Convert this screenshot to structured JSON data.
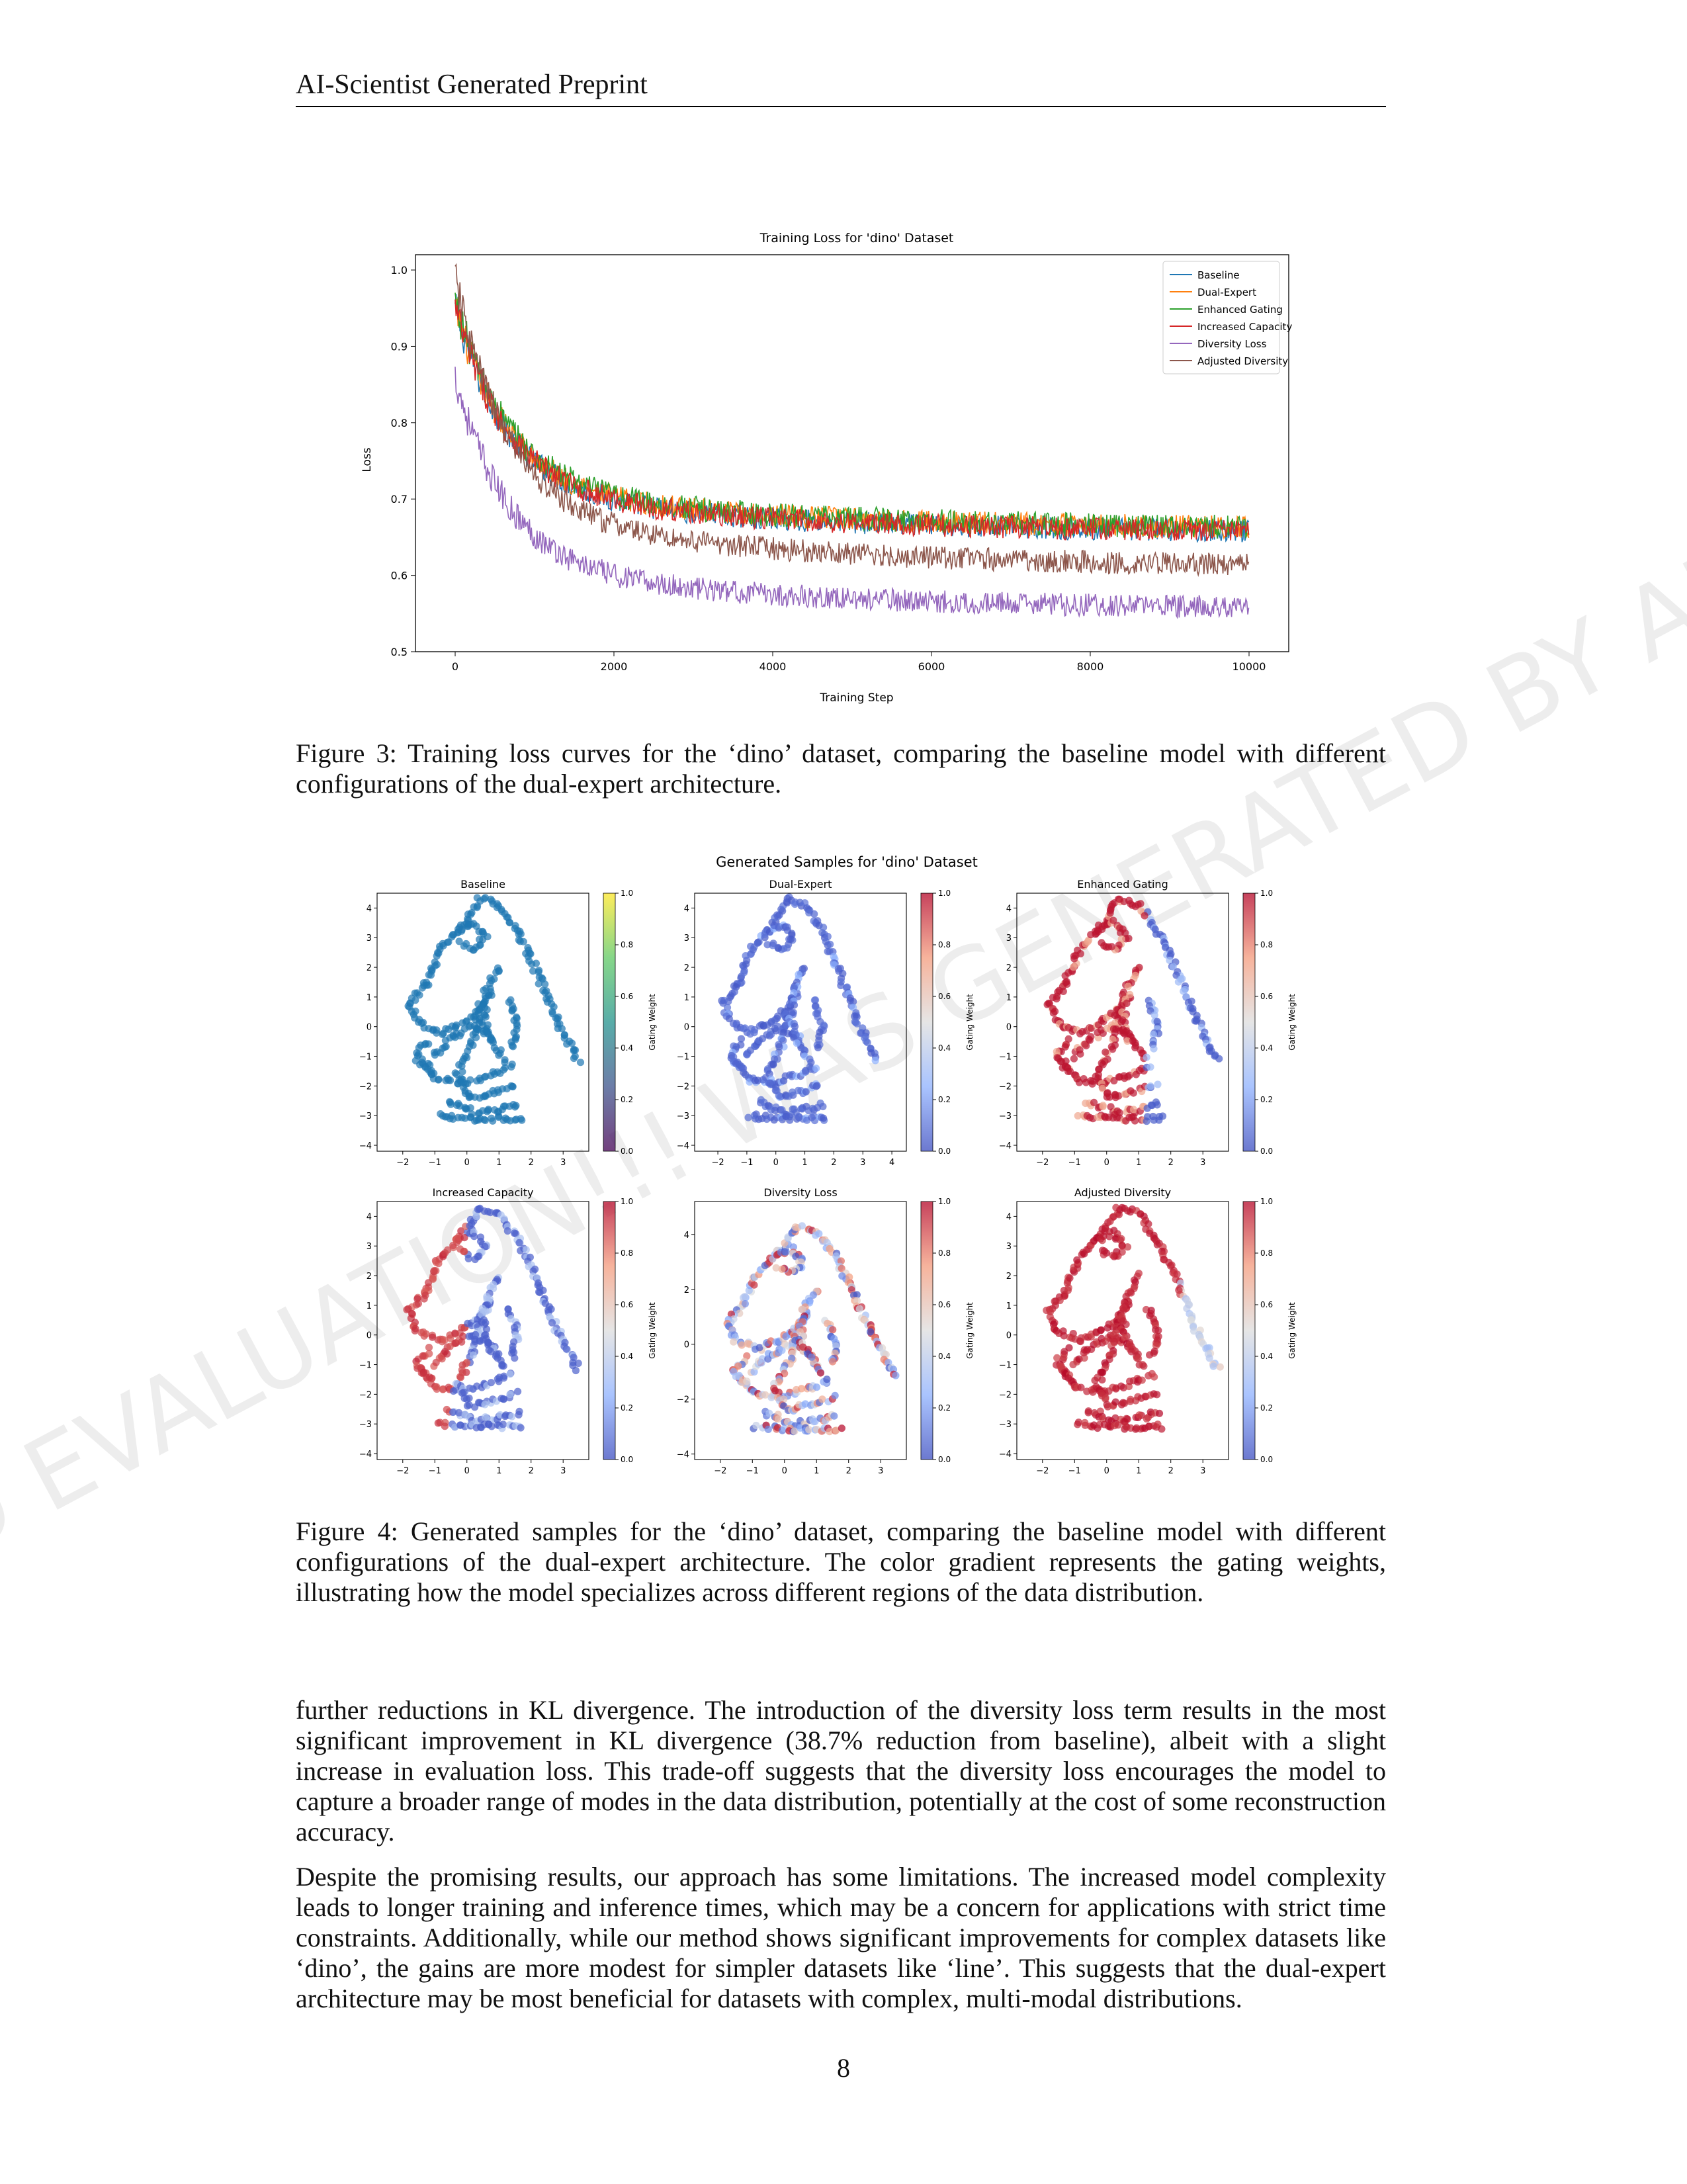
{
  "header": {
    "title": "AI-Scientist Generated Preprint"
  },
  "watermark": {
    "text": "AUTOMATED EVALUATION!!! WAS GENERATED BY AI-SCIENTIST"
  },
  "figure3": {
    "caption": "Figure 3: Training loss curves for the ‘dino’ dataset, comparing the baseline model with different configurations of the dual-expert architecture.",
    "chart_data": {
      "type": "line",
      "title": "Training Loss for 'dino' Dataset",
      "xlabel": "Training Step",
      "ylabel": "Loss",
      "xlim": [
        -500,
        10500
      ],
      "ylim": [
        0.5,
        1.02
      ],
      "xticks": [
        0,
        2000,
        4000,
        6000,
        8000,
        10000
      ],
      "yticks": [
        0.5,
        0.6,
        0.7,
        0.8,
        0.9,
        1.0
      ],
      "legend_position": "top-right",
      "grid": false,
      "series": [
        {
          "name": "Baseline",
          "color": "#1f77b4",
          "start": 0.95,
          "end": 0.655,
          "noise": 0.015
        },
        {
          "name": "Dual-Expert",
          "color": "#ff7f0e",
          "start": 0.95,
          "end": 0.66,
          "noise": 0.015
        },
        {
          "name": "Enhanced Gating",
          "color": "#2ca02c",
          "start": 0.96,
          "end": 0.66,
          "noise": 0.016
        },
        {
          "name": "Increased Capacity",
          "color": "#d62728",
          "start": 0.95,
          "end": 0.655,
          "noise": 0.015
        },
        {
          "name": "Diversity Loss",
          "color": "#9467bd",
          "start": 0.86,
          "end": 0.555,
          "noise": 0.015
        },
        {
          "name": "Adjusted Diversity",
          "color": "#8c564b",
          "start": 0.99,
          "end": 0.61,
          "noise": 0.015
        }
      ]
    }
  },
  "figure4": {
    "caption": "Figure 4: Generated samples for the ‘dino’ dataset, comparing the baseline model with different configurations of the dual-expert architecture. The color gradient represents the gating weights, illustrating how the model specializes across different regions of the data distribution.",
    "chart_data": {
      "type": "scatter",
      "title": "Generated Samples for 'dino' Dataset",
      "colorbar_label": "Gating Weight",
      "colorbar_ticks": [
        "0.0",
        "0.2",
        "0.4",
        "0.6",
        "0.8",
        "1.0"
      ],
      "panels": [
        {
          "name": "Baseline",
          "xlim": [
            -2.8,
            3.8
          ],
          "ylim": [
            -4.2,
            4.5
          ],
          "xticks": [
            -2,
            -1,
            0,
            1,
            2,
            3
          ],
          "yticks": [
            -4,
            -3,
            -2,
            -1,
            0,
            1,
            2,
            3,
            4
          ],
          "cmap": "viridis",
          "pattern": "uniform-blue"
        },
        {
          "name": "Dual-Expert",
          "xlim": [
            -2.8,
            4.5
          ],
          "ylim": [
            -4.2,
            4.5
          ],
          "xticks": [
            -2,
            -1,
            0,
            1,
            2,
            3,
            4
          ],
          "yticks": [
            -4,
            -3,
            -2,
            -1,
            0,
            1,
            2,
            3,
            4
          ],
          "cmap": "coolwarm",
          "pattern": "mostly-low"
        },
        {
          "name": "Enhanced Gating",
          "xlim": [
            -2.8,
            3.8
          ],
          "ylim": [
            -4.2,
            4.5
          ],
          "xticks": [
            -2,
            -1,
            0,
            1,
            2,
            3
          ],
          "yticks": [
            -4,
            -3,
            -2,
            -1,
            0,
            1,
            2,
            3,
            4
          ],
          "cmap": "coolwarm",
          "pattern": "left-high"
        },
        {
          "name": "Increased Capacity",
          "xlim": [
            -2.8,
            3.8
          ],
          "ylim": [
            -4.2,
            4.5
          ],
          "xticks": [
            -2,
            -1,
            0,
            1,
            2,
            3
          ],
          "yticks": [
            -4,
            -3,
            -2,
            -1,
            0,
            1,
            2,
            3,
            4
          ],
          "cmap": "coolwarm",
          "pattern": "left-high-right-low"
        },
        {
          "name": "Diversity Loss",
          "xlim": [
            -2.8,
            3.8
          ],
          "ylim": [
            -4.2,
            5.2
          ],
          "xticks": [
            -2,
            -1,
            0,
            1,
            2,
            3
          ],
          "yticks": [
            -4,
            -2,
            0,
            2,
            4
          ],
          "cmap": "coolwarm",
          "pattern": "mixed"
        },
        {
          "name": "Adjusted Diversity",
          "xlim": [
            -2.8,
            3.8
          ],
          "ylim": [
            -4.2,
            4.5
          ],
          "xticks": [
            -2,
            -1,
            0,
            1,
            2,
            3
          ],
          "yticks": [
            -4,
            -3,
            -2,
            -1,
            0,
            1,
            2,
            3,
            4
          ],
          "cmap": "coolwarm",
          "pattern": "mostly-high"
        }
      ]
    }
  },
  "body": {
    "p1": "further reductions in KL divergence. The introduction of the diversity loss term results in the most significant improvement in KL divergence (38.7% reduction from baseline), albeit with a slight increase in evaluation loss. This trade-off suggests that the diversity loss encourages the model to capture a broader range of modes in the data distribution, potentially at the cost of some reconstruction accuracy.",
    "p2": "Despite the promising results, our approach has some limitations. The increased model complexity leads to longer training and inference times, which may be a concern for applications with strict time constraints. Additionally, while our method shows significant improvements for complex datasets like ‘dino’, the gains are more modest for simpler datasets like ‘line’. This suggests that the dual-expert architecture may be most beneficial for datasets with complex, multi-modal distributions."
  },
  "page_number": "8"
}
